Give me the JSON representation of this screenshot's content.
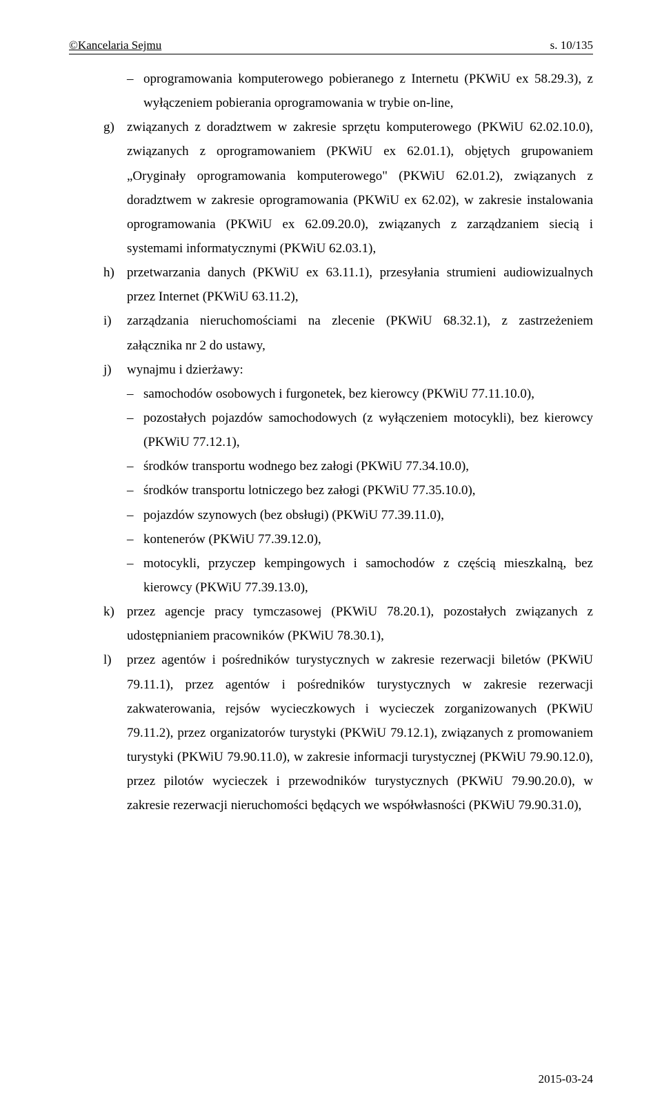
{
  "header": {
    "left": "©Kancelaria Sejmu",
    "right": "s. 10/135"
  },
  "content": {
    "intro_dash": "oprogramowania komputerowego pobieranego z Internetu (PKWiU ex 58.29.3), z wyłączeniem pobierania oprogramowania w trybie on-line,",
    "g": "związanych z doradztwem w zakresie sprzętu komputerowego (PKWiU 62.02.10.0), związanych z oprogramowaniem (PKWiU ex 62.01.1), objętych grupowaniem „Oryginały oprogramowania komputerowego\" (PKWiU 62.01.2), związanych z doradztwem w zakresie oprogramowania (PKWiU ex 62.02), w zakresie instalowania oprogramowania (PKWiU ex 62.09.20.0), związanych z zarządzaniem siecią i systemami informatycznymi (PKWiU 62.03.1),",
    "h": "przetwarzania danych (PKWiU ex 63.11.1), przesyłania strumieni audiowizualnych przez Internet (PKWiU 63.11.2),",
    "i": "zarządzania nieruchomościami na zlecenie (PKWiU 68.32.1), z zastrzeżeniem załącznika nr 2 do ustawy,",
    "j": "wynajmu i dzierżawy:",
    "j_items": [
      "samochodów osobowych i furgonetek, bez kierowcy (PKWiU 77.11.10.0),",
      "pozostałych pojazdów samochodowych (z wyłączeniem motocykli), bez kierowcy (PKWiU 77.12.1),",
      "środków transportu wodnego bez załogi (PKWiU 77.34.10.0),",
      "środków transportu lotniczego bez załogi (PKWiU 77.35.10.0),",
      "pojazdów szynowych (bez obsługi) (PKWiU 77.39.11.0),",
      "kontenerów (PKWiU 77.39.12.0),",
      "motocykli, przyczep kempingowych i samochodów z częścią mieszkalną, bez kierowcy (PKWiU 77.39.13.0),"
    ],
    "k": "przez agencje pracy tymczasowej (PKWiU 78.20.1), pozostałych związanych z udostępnianiem pracowników (PKWiU 78.30.1),",
    "l": "przez agentów i pośredników turystycznych w zakresie rezerwacji biletów (PKWiU 79.11.1), przez agentów i pośredników turystycznych w zakresie rezerwacji zakwaterowania, rejsów wycieczkowych i wycieczek zorganizowanych (PKWiU 79.11.2), przez organizatorów turystyki (PKWiU 79.12.1), związanych z promowaniem turystyki (PKWiU 79.90.11.0), w zakresie informacji turystycznej (PKWiU 79.90.12.0), przez pilotów wycieczek i przewodników turystycznych (PKWiU 79.90.20.0), w zakresie rezerwacji nieruchomości będących we współwłasności (PKWiU 79.90.31.0),"
  },
  "markers": {
    "dash": "–",
    "g": "g)",
    "h": "h)",
    "i": "i)",
    "j": "j)",
    "k": "k)",
    "l": "l)"
  },
  "footer": {
    "date": "2015-03-24"
  }
}
